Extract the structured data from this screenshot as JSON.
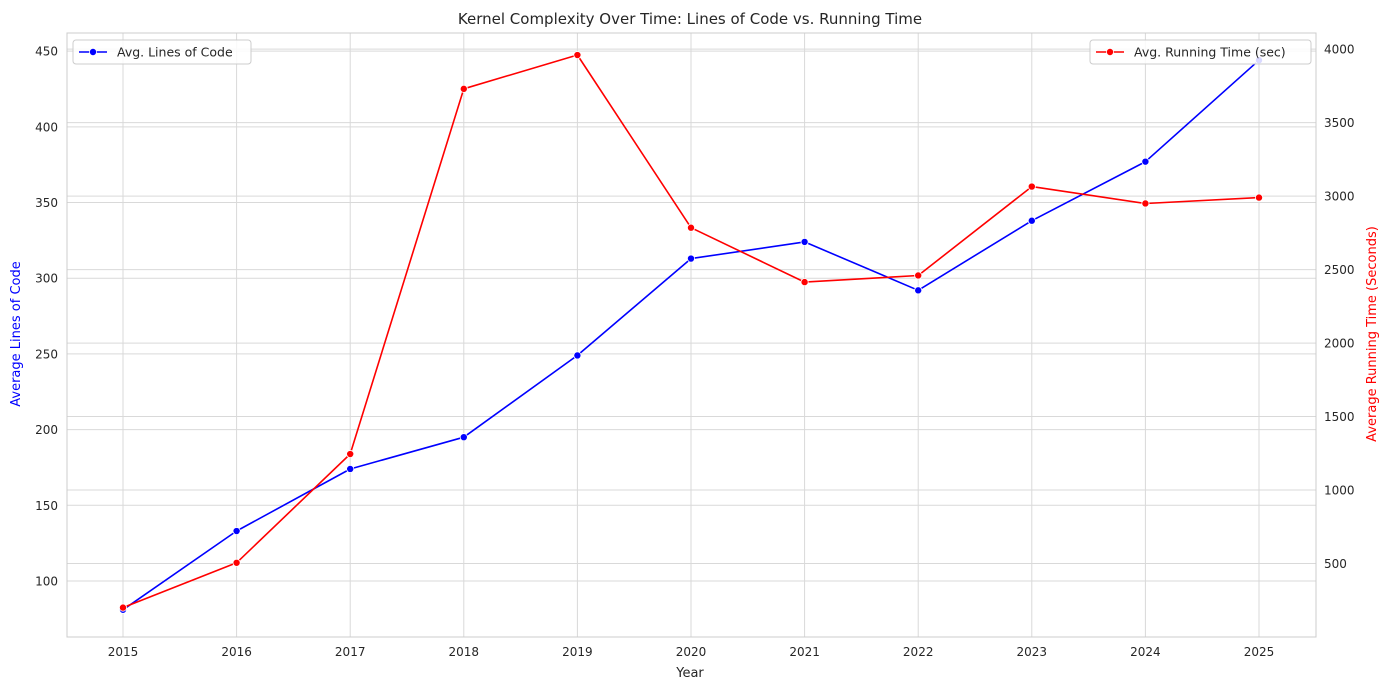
{
  "chart_data": {
    "type": "line",
    "title": "Kernel Complexity Over Time: Lines of Code vs. Running Time",
    "xlabel": "Year",
    "ylabel_left": "Average Lines of Code",
    "ylabel_right": "Average Running Time (Seconds)",
    "x": [
      "2015",
      "2016",
      "2017",
      "2018",
      "2019",
      "2020",
      "2021",
      "2022",
      "2023",
      "2024",
      "2025"
    ],
    "left_axis": {
      "ylim": [
        63,
        462
      ],
      "ticks": [
        100,
        150,
        200,
        250,
        300,
        350,
        400,
        450
      ],
      "tick_labels": [
        "100",
        "150",
        "200",
        "250",
        "300",
        "350",
        "400",
        "450"
      ]
    },
    "right_axis": {
      "ylim": [
        0,
        4110
      ],
      "ticks": [
        500,
        1000,
        1500,
        2000,
        2500,
        3000,
        3500,
        4000
      ],
      "tick_labels": [
        "500",
        "1000",
        "1500",
        "2000",
        "2500",
        "3000",
        "3500",
        "4000"
      ]
    },
    "grid": true,
    "series": [
      {
        "name": "Avg. Lines of Code",
        "axis": "left",
        "color": "#0000ff",
        "legend_position": "top-left",
        "values": [
          81,
          133,
          174,
          195,
          249,
          313,
          324,
          292,
          338,
          377,
          444
        ]
      },
      {
        "name": "Avg. Running Time (sec)",
        "axis": "right",
        "color": "#ff0000",
        "legend_position": "top-right",
        "values": [
          200,
          505,
          1245,
          3730,
          3960,
          2785,
          2415,
          2460,
          3065,
          2950,
          2990
        ]
      }
    ]
  }
}
